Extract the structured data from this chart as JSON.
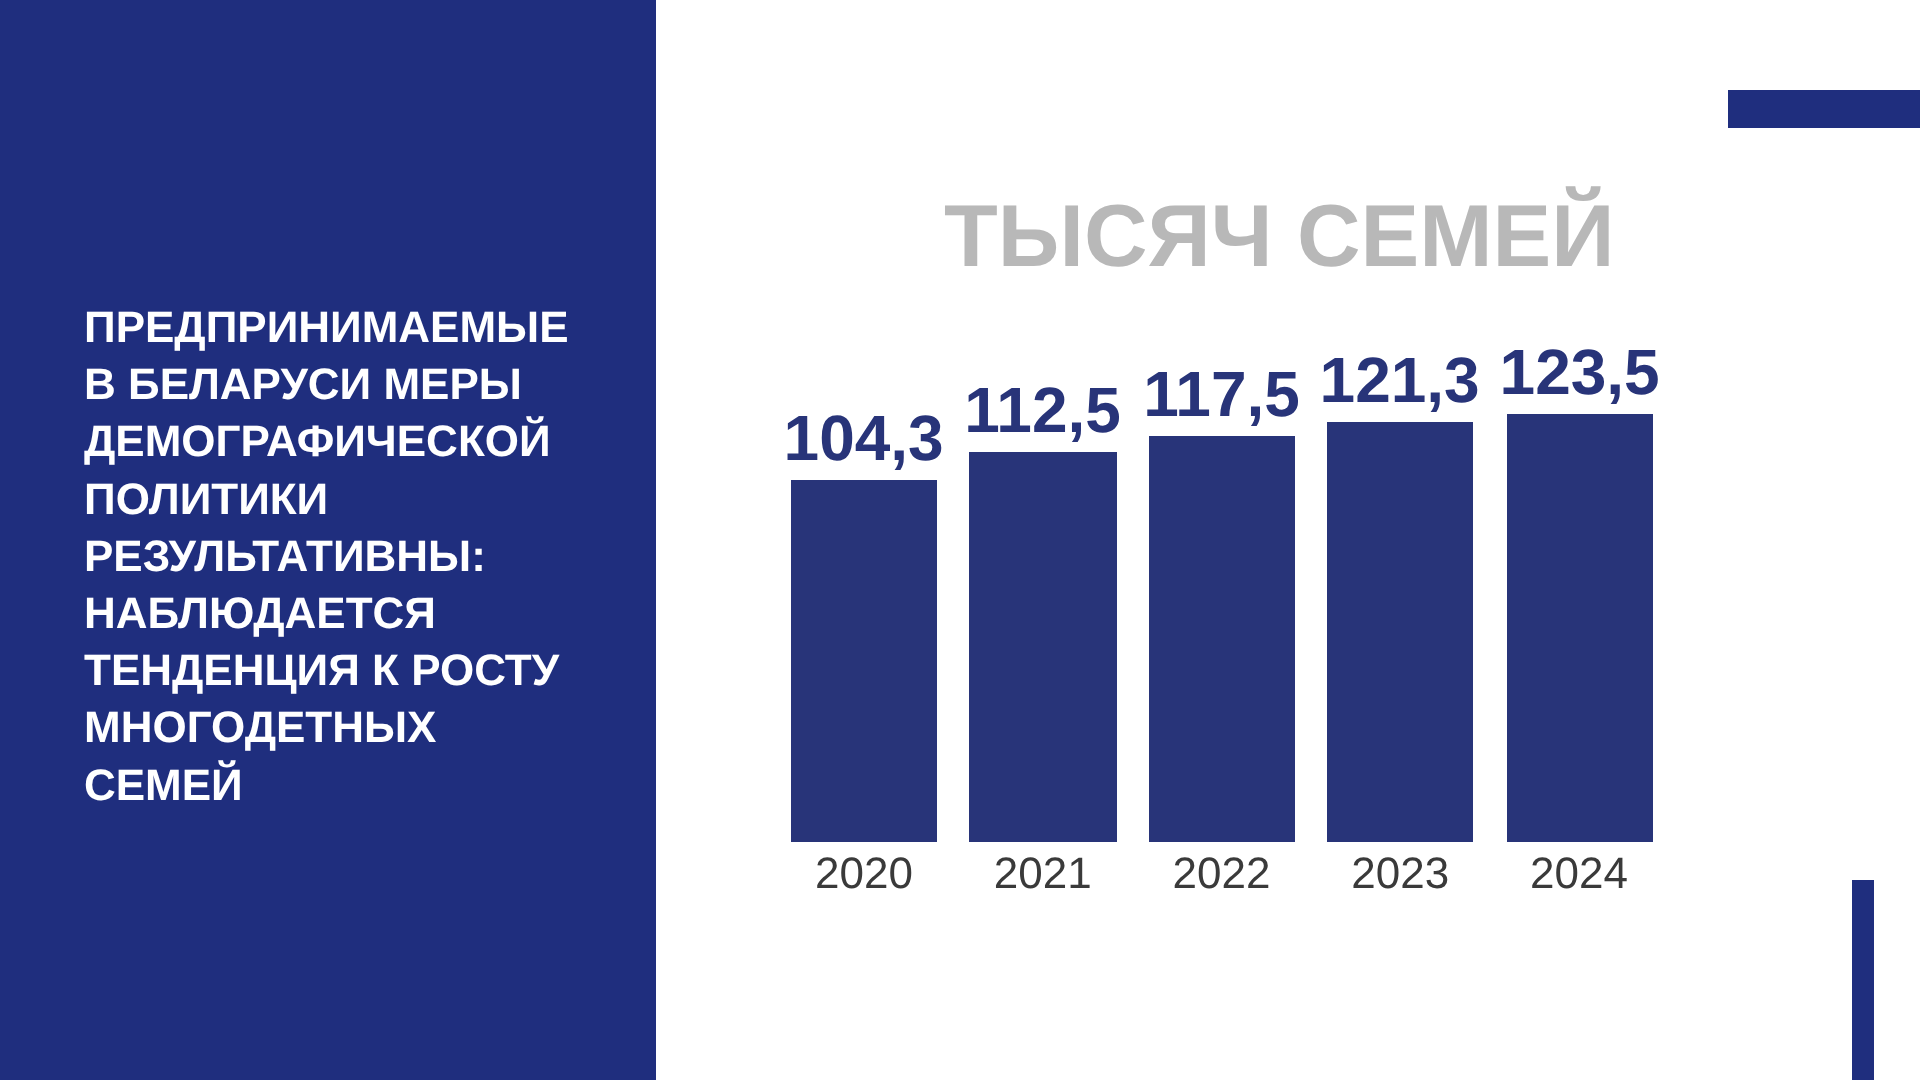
{
  "chart_data": {
    "type": "bar",
    "title": "ПРЕДПРИНИМАЕМЫЕ\nВ БЕЛАРУСИ МЕРЫ\nДЕМОГРАФИЧЕСКОЙ\nПОЛИТИКИ\nРЕЗУЛЬТАТИВНЫ:\nНАБЛЮДАЕТСЯ\nТЕНДЕНЦИЯ К РОСТУ\nМНОГОДЕТНЫХ\nСЕМЕЙ",
    "subtitle": "ТЫСЯЧ СЕМЕЙ",
    "categories": [
      "2020",
      "2021",
      "2022",
      "2023",
      "2024"
    ],
    "values": [
      104.3,
      112.5,
      117.5,
      121.3,
      123.5
    ],
    "value_labels": [
      "104,3",
      "112,5",
      "117,5",
      "121,3",
      "123,5"
    ],
    "color": "#283479",
    "tick_labels": "x"
  }
}
